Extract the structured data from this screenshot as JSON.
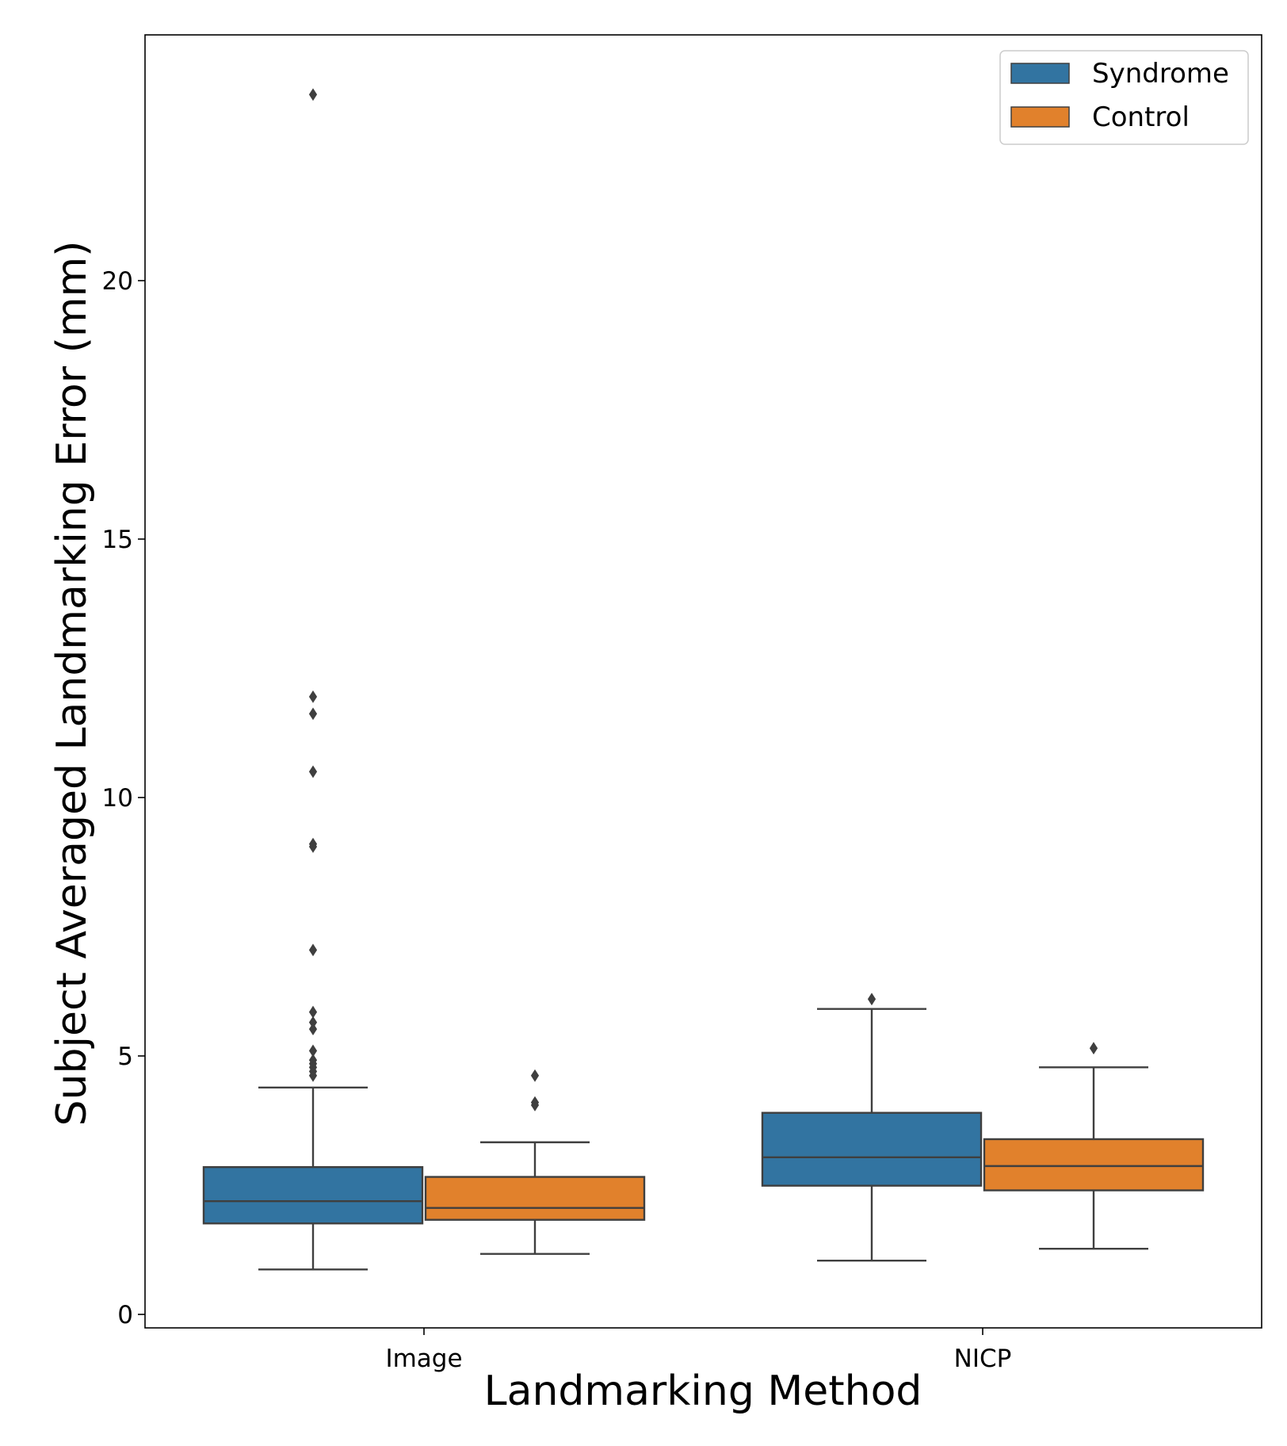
{
  "chart_data": {
    "type": "box",
    "xlabel": "Landmarking Method",
    "ylabel": "Subject Averaged Landmarking Error (mm)",
    "categories": [
      "Image",
      "NICP"
    ],
    "ylim": [
      -0.3,
      24.7
    ],
    "yticks": [
      0,
      5,
      10,
      15,
      20
    ],
    "legend_position": "top-right",
    "grid": false,
    "series": [
      {
        "name": "Syndrome",
        "color": "#3274a1",
        "boxes": [
          {
            "category": "Image",
            "whisker_low": 0.87,
            "q1": 1.76,
            "median": 2.19,
            "q3": 2.85,
            "whisker_high": 4.39,
            "outliers": [
              23.6,
              11.95,
              11.62,
              10.5,
              9.1,
              9.05,
              7.05,
              5.85,
              5.65,
              5.52,
              5.1,
              4.92,
              4.85,
              4.78,
              4.7,
              4.62
            ]
          },
          {
            "category": "NICP",
            "whisker_low": 1.04,
            "q1": 2.49,
            "median": 3.04,
            "q3": 3.9,
            "whisker_high": 5.91,
            "outliers": [
              6.1
            ]
          }
        ]
      },
      {
        "name": "Control",
        "color": "#e1812c",
        "boxes": [
          {
            "category": "Image",
            "whisker_low": 1.17,
            "q1": 1.83,
            "median": 2.06,
            "q3": 2.66,
            "whisker_high": 3.33,
            "outliers": [
              4.62,
              4.1,
              4.05
            ]
          },
          {
            "category": "NICP",
            "whisker_low": 1.27,
            "q1": 2.4,
            "median": 2.87,
            "q3": 3.39,
            "whisker_high": 4.78,
            "outliers": [
              5.15
            ]
          }
        ]
      }
    ]
  }
}
